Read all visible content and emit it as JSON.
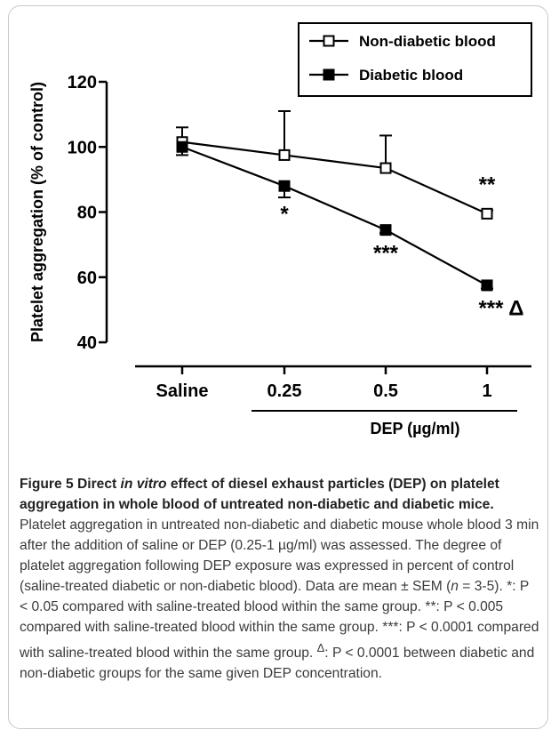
{
  "chart_data": {
    "type": "line",
    "categories": [
      "Saline",
      "0.25",
      "0.5",
      "1"
    ],
    "ylabel": "Platelet aggregation (% of control)",
    "xlabel": "DEP (µg/ml)",
    "ylim": [
      40,
      120
    ],
    "yticks": [
      "40",
      "60",
      "80",
      "100",
      "120"
    ],
    "legend_position": "top-right",
    "series": [
      {
        "name": "Non-diabetic blood",
        "marker": "open-square",
        "values": [
          101.5,
          97.5,
          93.5,
          79.5
        ],
        "sem": [
          4.5,
          13.5,
          10.0,
          1.0
        ]
      },
      {
        "name": "Diabetic blood",
        "marker": "filled-square",
        "values": [
          100.0,
          88.0,
          74.5,
          57.5
        ],
        "sem": [
          2.5,
          3.5,
          1.0,
          1.0
        ]
      }
    ],
    "annotations": [
      {
        "text": "*",
        "x": "0.25",
        "y": 80
      },
      {
        "text": "***",
        "x": "0.5",
        "y": 68
      },
      {
        "text": "**",
        "x": "1",
        "y": 89
      },
      {
        "text": "*** Δ",
        "x": "1",
        "y": 51
      }
    ]
  },
  "caption": {
    "title_part1": "Figure 5 Direct ",
    "title_italic": "in vitro",
    "title_part2": " effect of diesel exhaust particles (DEP) on platelet aggregation in whole blood of untreated non-diabetic and diabetic mice.",
    "body_part1": " Platelet aggregation in untreated non-diabetic and diabetic mouse whole blood 3 min after the addition of saline or DEP (0.25-1 µg/ml) was assessed. The degree of platelet aggregation following DEP exposure was expressed in percent of control (saline-treated diabetic or non-diabetic blood). Data are mean ± SEM (",
    "body_n": "n",
    "body_part2": " = 3-5). *: P < 0.05 compared with saline-treated blood within the same group. **: P < 0.005 compared with saline-treated blood within the same group. ***: P < 0.0001 compared with saline-treated blood within the same group. ",
    "body_delta": "Δ",
    "body_part3": ": P < 0.0001 between diabetic and non-diabetic groups for the same given DEP concentration."
  }
}
